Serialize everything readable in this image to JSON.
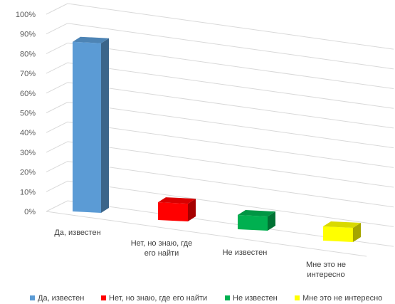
{
  "chart_data": {
    "type": "bar",
    "categories": [
      [
        "Да, известен"
      ],
      [
        "Нет, но знаю, где",
        "его найти"
      ],
      [
        "Не известен"
      ],
      [
        "Мне это не",
        "интересно"
      ]
    ],
    "values": [
      92,
      5,
      4,
      4
    ],
    "ylim": [
      0,
      100
    ],
    "yticks": [
      "0%",
      "10%",
      "20%",
      "30%",
      "40%",
      "50%",
      "60%",
      "70%",
      "80%",
      "90%",
      "100%"
    ],
    "colors": [
      "#5b9bd5",
      "#ff0000",
      "#00b050",
      "#ffff00"
    ],
    "grid": true,
    "legend_position": "bottom",
    "legend": [
      "Да, известен",
      "Нет, но знаю, где его найти",
      "Не известен",
      "Мне это не интересно"
    ]
  }
}
